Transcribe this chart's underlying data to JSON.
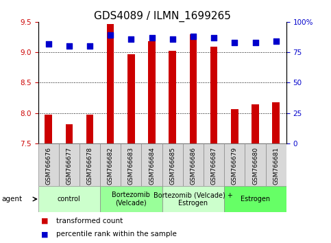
{
  "title": "GDS4089 / ILMN_1699265",
  "samples": [
    "GSM766676",
    "GSM766677",
    "GSM766678",
    "GSM766682",
    "GSM766683",
    "GSM766684",
    "GSM766685",
    "GSM766686",
    "GSM766687",
    "GSM766679",
    "GSM766680",
    "GSM766681"
  ],
  "transformed_counts": [
    7.97,
    7.82,
    7.97,
    9.47,
    8.97,
    9.18,
    9.02,
    9.29,
    9.09,
    8.06,
    8.14,
    8.18
  ],
  "percentile_ranks": [
    82,
    80,
    80,
    89,
    86,
    87,
    86,
    88,
    87,
    83,
    83,
    84
  ],
  "ylim_left": [
    7.5,
    9.5
  ],
  "ylim_right": [
    0,
    100
  ],
  "yticks_left": [
    7.5,
    8.0,
    8.5,
    9.0,
    9.5
  ],
  "yticks_right": [
    0,
    25,
    50,
    75,
    100
  ],
  "ytick_labels_right": [
    "0",
    "25",
    "50",
    "75",
    "100%"
  ],
  "bar_color": "#cc0000",
  "dot_color": "#0000cc",
  "groups": [
    {
      "label": "control",
      "start": 0,
      "end": 3,
      "color": "#ccffcc"
    },
    {
      "label": "Bortezomib\n(Velcade)",
      "start": 3,
      "end": 6,
      "color": "#99ff99"
    },
    {
      "label": "Bortezomib (Velcade) +\nEstrogen",
      "start": 6,
      "end": 9,
      "color": "#ccffcc"
    },
    {
      "label": "Estrogen",
      "start": 9,
      "end": 12,
      "color": "#66ff66"
    }
  ],
  "bar_width": 0.35,
  "dot_size": 40,
  "bg_color": "#ffffff",
  "tick_label_color_left": "#cc0000",
  "tick_label_color_right": "#0000cc",
  "title_fontsize": 11,
  "axis_fontsize": 7.5,
  "sample_fontsize": 6.5,
  "group_fontsize": 7,
  "legend_fontsize": 7.5,
  "agent_label": "agent",
  "legend_items": [
    "transformed count",
    "percentile rank within the sample"
  ],
  "grid_yticks": [
    8.0,
    8.5,
    9.0
  ],
  "sample_cell_color": "#d8d8d8",
  "sample_cell_edge": "#888888"
}
